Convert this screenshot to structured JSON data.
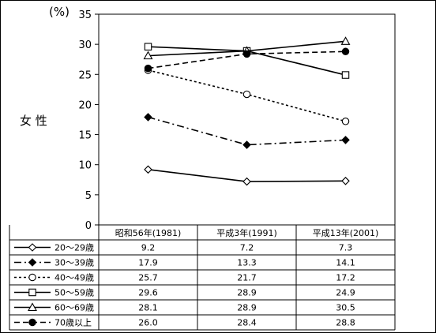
{
  "chart_data": {
    "type": "line",
    "ylabel": "女 性",
    "unit_label": "(%)",
    "ylim": [
      0,
      35
    ],
    "yticks": [
      0,
      5,
      10,
      15,
      20,
      25,
      30,
      35
    ],
    "categories": [
      "昭和56年(1981)",
      "平成3年(1991)",
      "平成13年(2001)"
    ],
    "series": [
      {
        "name": "20～29歳",
        "marker": "diamond-open",
        "line": "solid",
        "values": [
          9.2,
          7.2,
          7.3
        ]
      },
      {
        "name": "30～39歳",
        "marker": "diamond-filled",
        "line": "dashdot",
        "values": [
          17.9,
          13.3,
          14.1
        ]
      },
      {
        "name": "40～49歳",
        "marker": "circle-open",
        "line": "dotted",
        "values": [
          25.7,
          21.7,
          17.2
        ]
      },
      {
        "name": "50～59歳",
        "marker": "square-open",
        "line": "solid",
        "values": [
          29.6,
          28.9,
          24.9
        ]
      },
      {
        "name": "60～69歳",
        "marker": "triangle-open",
        "line": "solid",
        "values": [
          28.1,
          28.9,
          30.5
        ]
      },
      {
        "name": "70歳以上",
        "marker": "circle-filled",
        "line": "dashed",
        "values": [
          26.0,
          28.4,
          28.8
        ]
      }
    ],
    "table_values": [
      [
        "9.2",
        "7.2",
        "7.3"
      ],
      [
        "17.9",
        "13.3",
        "14.1"
      ],
      [
        "25.7",
        "21.7",
        "17.2"
      ],
      [
        "29.6",
        "28.9",
        "24.9"
      ],
      [
        "28.1",
        "28.9",
        "30.5"
      ],
      [
        "26.0",
        "28.4",
        "28.8"
      ]
    ],
    "grid": false,
    "legend": "data-table-below"
  }
}
